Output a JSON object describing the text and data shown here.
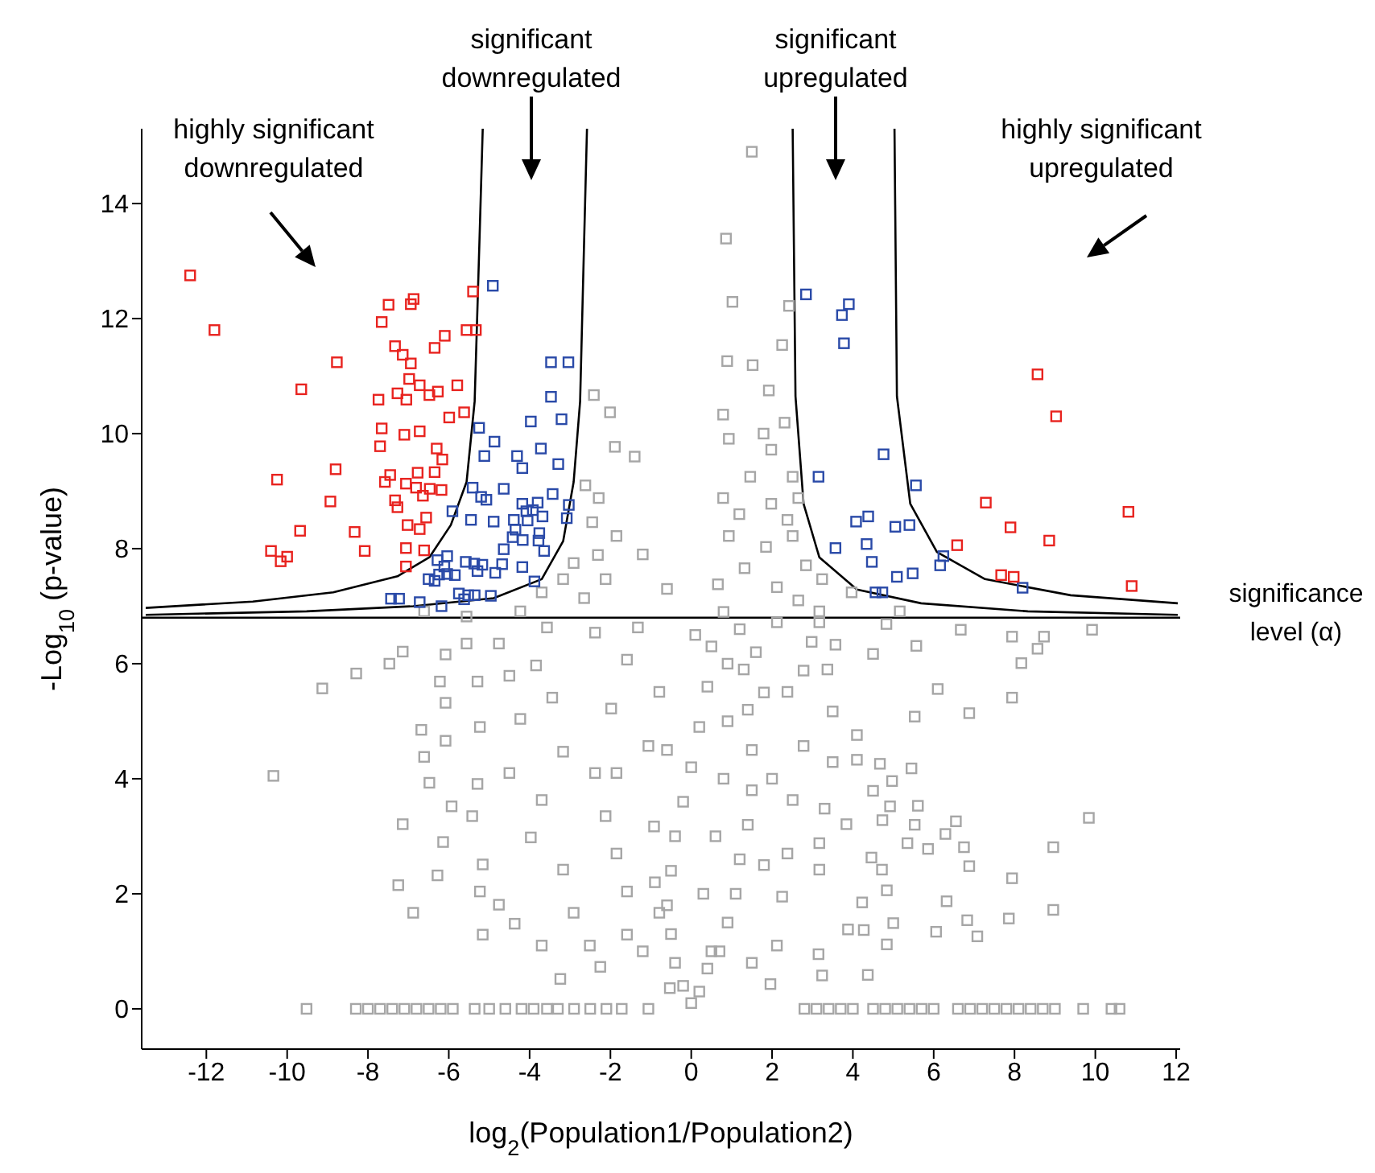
{
  "chart_data": {
    "type": "scatter",
    "marker": "square",
    "xlabel": "log$_{2}$(Population1/Population2)",
    "ylabel": "-Log$_{10}$ (p-value)",
    "xlim": [
      -13.6,
      12.1
    ],
    "xticks": [
      -12,
      -10,
      -8,
      -6,
      -4,
      -2,
      0,
      2,
      4,
      6,
      8,
      10,
      12
    ],
    "ylim": [
      -0.7,
      15.3
    ],
    "yticks": [
      0,
      2,
      4,
      6,
      8,
      10,
      12,
      14
    ],
    "annotations": [
      "highly significant\ndownregulated",
      "significant\ndownregulated",
      "significant\nupregulated",
      "highly significant\nupregulated"
    ],
    "ref_lines": [
      {
        "axis": "y",
        "value": 6.8,
        "label": "significance\nlevel (α)",
        "color": "#000000"
      }
    ],
    "series": [
      {
        "color": "#a6a6a6",
        "x": [
          9.92,
          7.94,
          8.73,
          8.57,
          8.17,
          7.94,
          6.1,
          6.88,
          5.53,
          6.67,
          5.57,
          4.83,
          4.5,
          9.84,
          8.96,
          7.94,
          8.96,
          7.86,
          6.88,
          6.75,
          6.55,
          6.29,
          5.86,
          5.61,
          5.53,
          5.35,
          5.45,
          4.97,
          4.67,
          4.1,
          4.5,
          4.92,
          4.73,
          4.46,
          4.72,
          4.84,
          4.23,
          6.32,
          7.08,
          6.83,
          6.06,
          5.0,
          4.84,
          4.27,
          3.88,
          4.37,
          3.24,
          3.15,
          1.96,
          3.5,
          4.1,
          3.5,
          3.3,
          3.17,
          3.17,
          3.84,
          2.78,
          3.37,
          2.98,
          3.57,
          3.17,
          2.12,
          2.38,
          2.78,
          2.51,
          2.38,
          2.25,
          2.12,
          2.8,
          3.1,
          3.4,
          3.7,
          4.0,
          4.5,
          4.8,
          5.1,
          5.4,
          5.7,
          6.0,
          6.6,
          6.9,
          7.2,
          7.5,
          7.8,
          8.1,
          8.4,
          8.7,
          9.0,
          9.7,
          10.4,
          10.6,
          -9.52,
          -8.3,
          -8.0,
          -7.7,
          -7.4,
          -7.1,
          -6.8,
          -6.5,
          -6.2,
          -5.9,
          -5.36,
          -5.0,
          -4.6,
          -4.2,
          -3.9,
          -3.57,
          -3.3,
          -2.9,
          -2.5,
          -2.1,
          -1.72,
          -1.06,
          -9.13,
          -10.34,
          -8.29,
          -7.47,
          -7.14,
          -6.68,
          -6.61,
          -6.48,
          -7.14,
          -7.25,
          -6.88,
          -6.28,
          -6.14,
          -5.93,
          -6.08,
          -6.08,
          -6.22,
          -6.08,
          -5.56,
          -5.29,
          -5.23,
          -5.29,
          -5.42,
          -5.16,
          -5.23,
          -5.16,
          -4.76,
          -4.37,
          -3.7,
          -3.24,
          -4.5,
          -4.23,
          -4.5,
          -4.76,
          -3.57,
          -3.84,
          -3.44,
          -3.17,
          -3.7,
          -3.97,
          -3.17,
          -2.91,
          -2.51,
          -2.25,
          -2.38,
          -1.59,
          -1.98,
          -2.38,
          -2.12,
          -1.85,
          -1.59,
          -1.59,
          -1.06,
          -0.79,
          -0.92,
          -0.79,
          -0.53,
          -1.85,
          -1.32,
          1.5,
          0.86,
          1.02,
          2.42,
          2.25,
          0.89,
          1.52,
          1.92,
          0.79,
          2.31,
          1.79,
          1.98,
          0.93,
          2.51,
          1.46,
          0.79,
          1.98,
          2.65,
          1.19,
          2.38,
          0.93,
          1.85,
          2.51,
          2.84,
          3.24,
          1.32,
          0.66,
          2.12,
          3.97,
          2.65,
          3.17,
          5.16,
          -2.41,
          -2.01,
          -1.89,
          -2.62,
          -2.29,
          -2.45,
          -1.85,
          -2.31,
          -2.91,
          -3.17,
          -2.12,
          -3.7,
          -2.65,
          -4.23,
          -6.61,
          -5.56,
          -1.4,
          -1.2,
          -0.6,
          0,
          0.2,
          -0.2,
          0.4,
          -0.4,
          0.7,
          -0.5,
          0.9,
          -0.6,
          1.1,
          -0.5,
          1.2,
          -0.4,
          1.4,
          -0.2,
          1.5,
          0,
          1.5,
          0.2,
          1.4,
          0.4,
          1.3,
          0.5,
          1.2,
          0.8,
          0.3,
          0.6,
          0.8,
          0.9,
          0.9,
          0.5,
          1.8,
          -0.9,
          2.0,
          1.8,
          -0.6,
          0.1,
          1.6,
          -1.2,
          1.5
        ],
        "values": [
          6.59,
          6.47,
          6.47,
          6.26,
          6.01,
          5.41,
          5.56,
          5.14,
          5.08,
          6.59,
          6.31,
          6.69,
          6.17,
          3.32,
          2.81,
          2.27,
          1.72,
          1.57,
          2.48,
          2.81,
          3.26,
          3.04,
          2.78,
          3.53,
          3.2,
          2.88,
          4.18,
          3.96,
          4.26,
          4.33,
          3.79,
          3.52,
          3.28,
          2.63,
          2.42,
          2.06,
          1.85,
          1.87,
          1.26,
          1.54,
          1.34,
          1.49,
          1.12,
          1.37,
          1.38,
          0.59,
          0.58,
          0.95,
          0.43,
          5.17,
          4.76,
          4.29,
          3.48,
          2.88,
          2.42,
          3.21,
          5.88,
          5.9,
          6.38,
          6.33,
          6.72,
          6.72,
          5.51,
          4.57,
          3.63,
          2.7,
          1.95,
          1.1,
          0,
          0,
          0,
          0,
          0,
          0,
          0,
          0,
          0,
          0,
          0,
          0,
          0,
          0,
          0,
          0,
          0,
          0,
          0,
          0,
          0,
          0,
          0,
          0,
          0,
          0,
          0,
          0,
          0,
          0,
          0,
          0,
          0,
          0,
          0,
          0,
          0,
          0,
          0,
          0,
          0,
          0,
          0,
          0,
          0,
          5.57,
          4.05,
          5.83,
          6.0,
          6.21,
          4.85,
          4.38,
          3.93,
          3.21,
          2.15,
          1.67,
          2.32,
          2.9,
          3.52,
          4.66,
          5.32,
          5.69,
          6.16,
          6.35,
          5.69,
          4.9,
          3.91,
          3.35,
          2.51,
          2.04,
          1.29,
          1.81,
          1.48,
          1.1,
          0.52,
          4.1,
          5.04,
          5.79,
          6.35,
          6.63,
          5.97,
          5.41,
          4.47,
          3.63,
          2.98,
          2.42,
          1.67,
          1.1,
          0.73,
          6.54,
          6.07,
          5.22,
          4.1,
          3.35,
          2.7,
          2.04,
          1.29,
          4.57,
          5.51,
          3.17,
          1.67,
          0.36,
          4.1,
          6.63,
          14.9,
          13.39,
          12.29,
          12.22,
          11.54,
          11.26,
          11.19,
          10.75,
          10.33,
          10.19,
          10.0,
          9.72,
          9.91,
          9.25,
          9.25,
          8.88,
          8.78,
          8.88,
          8.6,
          8.5,
          8.22,
          8.03,
          8.22,
          7.71,
          7.47,
          7.66,
          7.38,
          7.33,
          7.24,
          7.1,
          6.91,
          6.91,
          10.67,
          10.37,
          9.77,
          9.1,
          8.88,
          8.46,
          8.22,
          7.89,
          7.75,
          7.47,
          7.47,
          7.24,
          7.14,
          6.91,
          6.91,
          6.82,
          9.6,
          7.9,
          7.3,
          0.1,
          0.3,
          0.4,
          0.7,
          0.8,
          1.0,
          1.3,
          1.5,
          1.8,
          2.0,
          2.4,
          2.6,
          3.0,
          3.2,
          3.6,
          3.8,
          4.2,
          4.5,
          4.9,
          5.2,
          5.6,
          5.9,
          6.3,
          6.6,
          6.9,
          2.0,
          3.0,
          4.0,
          5.0,
          6.0,
          1.0,
          2.5,
          2.2,
          4.0,
          5.5,
          4.5,
          6.5,
          6.2,
          1.0,
          0.8
        ]
      },
      {
        "color": "#2a4aa8",
        "x": [
          -4.91,
          -3.47,
          -3.04,
          -3.47,
          -3.21,
          -3.97,
          -5.25,
          -4.87,
          -3.72,
          -5.12,
          -4.31,
          -4.18,
          -3.29,
          -5.41,
          -4.64,
          -5.2,
          -5.07,
          -3.43,
          -4.18,
          -3.8,
          -3.03,
          -5.91,
          -4.08,
          -3.92,
          -5.45,
          -4.89,
          -4.39,
          -4.05,
          -3.68,
          -3.08,
          -4.35,
          -3.76,
          -4.42,
          -4.17,
          -3.78,
          -3.64,
          -4.64,
          -6.04,
          -6.28,
          -6.11,
          -6.24,
          -6.5,
          -6.35,
          -6.04,
          -5.85,
          -5.58,
          -5.37,
          -5.17,
          -5.29,
          -4.85,
          -4.68,
          -4.18,
          -3.88,
          -5.75,
          -5.52,
          -5.36,
          -4.96,
          -7.43,
          -7.23,
          -6.72,
          -6.18,
          -5.62,
          2.84,
          3.9,
          3.73,
          3.78,
          4.76,
          3.15,
          5.56,
          4.08,
          4.38,
          5.05,
          5.4,
          3.57,
          4.34,
          4.47,
          5.09,
          5.48,
          6.24,
          6.16,
          4.56,
          4.73,
          8.2
        ],
        "values": [
          12.57,
          11.24,
          11.24,
          10.64,
          10.25,
          10.21,
          10.1,
          9.86,
          9.74,
          9.61,
          9.61,
          9.4,
          9.47,
          9.06,
          9.04,
          8.9,
          8.85,
          8.95,
          8.78,
          8.8,
          8.76,
          8.65,
          8.65,
          8.67,
          8.5,
          8.47,
          8.5,
          8.49,
          8.56,
          8.53,
          8.33,
          8.27,
          8.2,
          8.15,
          8.14,
          7.96,
          7.99,
          7.87,
          7.8,
          7.69,
          7.55,
          7.47,
          7.44,
          7.56,
          7.54,
          7.77,
          7.74,
          7.72,
          7.61,
          7.58,
          7.73,
          7.68,
          7.43,
          7.22,
          7.19,
          7.19,
          7.18,
          7.13,
          7.13,
          7.07,
          7.0,
          7.12,
          12.42,
          12.25,
          12.06,
          11.57,
          9.64,
          9.25,
          9.1,
          8.47,
          8.56,
          8.38,
          8.41,
          8.01,
          8.08,
          7.77,
          7.51,
          7.57,
          7.87,
          7.71,
          7.24,
          7.24,
          7.32
        ]
      },
      {
        "color": "#e8231f",
        "x": [
          -12.4,
          -11.8,
          -8.77,
          -9.65,
          -10.25,
          -8.8,
          -8.93,
          -9.68,
          -10.4,
          -10.0,
          -10.16,
          -8.33,
          -8.08,
          -7.49,
          -6.94,
          -6.87,
          -7.66,
          -5.4,
          -5.56,
          -5.33,
          -6.1,
          -6.35,
          -7.33,
          -7.14,
          -6.94,
          -6.98,
          -7.27,
          -7.74,
          -6.72,
          -6.48,
          -6.27,
          -5.79,
          -7.05,
          -5.62,
          -5.99,
          -7.66,
          -7.1,
          -6.72,
          -7.7,
          -6.3,
          -6.16,
          -7.45,
          -7.58,
          -6.77,
          -6.35,
          -7.06,
          -6.81,
          -6.47,
          -6.18,
          -6.64,
          -7.33,
          -7.27,
          -6.56,
          -7.02,
          -6.72,
          -7.06,
          -6.61,
          -7.06,
          8.57,
          9.03,
          7.29,
          7.9,
          8.86,
          10.82,
          6.58,
          7.67,
          7.98,
          10.9
        ],
        "values": [
          12.75,
          11.8,
          11.24,
          10.77,
          9.2,
          9.38,
          8.82,
          8.31,
          7.96,
          7.86,
          7.78,
          8.29,
          7.96,
          12.24,
          12.25,
          12.34,
          11.94,
          12.47,
          11.8,
          11.8,
          11.7,
          11.49,
          11.52,
          11.37,
          11.22,
          10.95,
          10.7,
          10.59,
          10.84,
          10.67,
          10.73,
          10.84,
          10.59,
          10.37,
          10.28,
          10.09,
          9.98,
          10.04,
          9.78,
          9.74,
          9.55,
          9.28,
          9.16,
          9.32,
          9.33,
          9.13,
          9.06,
          9.04,
          9.02,
          8.92,
          8.84,
          8.72,
          8.54,
          8.41,
          8.34,
          8.01,
          7.97,
          7.69,
          11.03,
          10.3,
          8.8,
          8.37,
          8.14,
          8.64,
          8.06,
          7.54,
          7.51,
          7.35
        ]
      },
      {
        "type": "line",
        "marker": "none",
        "color": "#000000",
        "x": [
          -5.16,
          -5.24,
          -5.36,
          -5.56,
          -5.95,
          -6.48,
          -7.27,
          -8.86,
          -10.85,
          -13.5
        ],
        "values": [
          15.3,
          13.37,
          10.56,
          9.16,
          8.41,
          7.85,
          7.52,
          7.24,
          7.08,
          6.97
        ]
      },
      {
        "type": "line",
        "marker": "none",
        "color": "#000000",
        "x": [
          -2.58,
          -2.65,
          -2.75,
          -2.91,
          -3.17,
          -3.7,
          -4.89,
          -6.88,
          -9.52,
          -13.5
        ],
        "values": [
          15.3,
          13.37,
          10.56,
          9.16,
          8.13,
          7.47,
          7.14,
          7.0,
          6.91,
          6.85
        ]
      },
      {
        "type": "line",
        "marker": "none",
        "color": "#000000",
        "x": [
          2.51,
          2.58,
          2.78,
          3.17,
          4.1,
          5.69,
          8.33,
          12.04
        ],
        "values": [
          15.3,
          10.65,
          8.78,
          7.85,
          7.29,
          7.05,
          6.91,
          6.85
        ]
      },
      {
        "type": "line",
        "marker": "none",
        "color": "#000000",
        "x": [
          5.03,
          5.09,
          5.42,
          6.08,
          7.27,
          9.39,
          12.04
        ],
        "values": [
          15.3,
          10.65,
          8.78,
          7.94,
          7.47,
          7.19,
          7.05
        ]
      }
    ]
  }
}
